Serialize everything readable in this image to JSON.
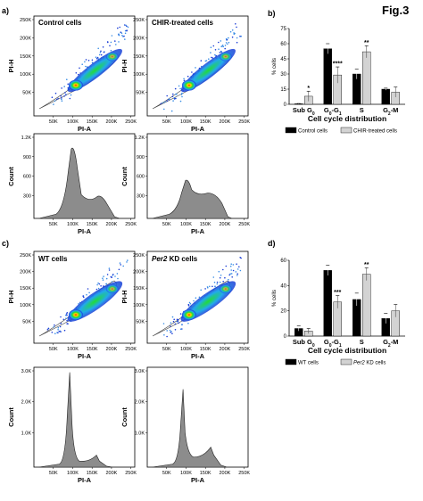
{
  "figure_title": "Fig.3",
  "panels": {
    "a": {
      "letter": "a)",
      "left_title": "Control cells",
      "right_title": "CHIR-treated cells"
    },
    "b": {
      "letter": "b)"
    },
    "c": {
      "letter": "c)",
      "left_title": "WT cells",
      "right_title": "Per2 KD cells"
    },
    "d": {
      "letter": "d)"
    }
  },
  "flow": {
    "scatter_ylabel": "PI-H",
    "xlabel": "PI-A",
    "hist_ylabel": "Count",
    "x_ticks": [
      "50K",
      "100K",
      "150K",
      "200K",
      "250K"
    ],
    "scatter_y_ticks": [
      "250K",
      "200K",
      "150K",
      "100K",
      "50K"
    ],
    "hist_y_ticks_a": [
      "1.2K",
      "900",
      "600",
      "300"
    ],
    "hist_y_ticks_c": [
      "3.0K",
      "2.0K",
      "1.0K"
    ]
  },
  "colors": {
    "black_bar": "#000000",
    "gray_bar": "#d3d3d3",
    "hist_fill": "#8c8c8c"
  },
  "chart_data": [
    {
      "type": "bar",
      "panel": "b",
      "title": "",
      "xlabel": "Cell cycle distribution",
      "ylabel": "% cells",
      "ylim": [
        0,
        75
      ],
      "y_ticks": [
        0,
        15,
        30,
        45,
        60,
        75
      ],
      "categories": [
        "Sub G0",
        "G0-G1",
        "S",
        "G2-M"
      ],
      "category_labels": [
        {
          "base": "Sub G",
          "sub": "0"
        },
        {
          "base": "G",
          "sub": "0",
          "mid": "-G",
          "sub2": "1"
        },
        {
          "base": "S"
        },
        {
          "base": "G",
          "sub": "2",
          "mid": "-M"
        }
      ],
      "series": [
        {
          "name": "Control cells",
          "color": "#000000",
          "values": [
            0.5,
            55,
            30,
            15
          ],
          "errors": [
            0.3,
            5,
            5,
            1
          ]
        },
        {
          "name": "CHIR-treated cells",
          "color": "#d3d3d3",
          "values": [
            8,
            29,
            52,
            12
          ],
          "errors": [
            5,
            8,
            6,
            5
          ]
        }
      ],
      "significance": [
        "*",
        "****",
        "**",
        ""
      ],
      "legend": "bottom"
    },
    {
      "type": "bar",
      "panel": "d",
      "title": "",
      "xlabel": "Cell cycle distribution",
      "ylabel": "% cells",
      "ylim": [
        0,
        60
      ],
      "y_ticks": [
        0,
        20,
        40,
        60
      ],
      "categories": [
        "Sub G0",
        "G0-G1",
        "S",
        "G2-M"
      ],
      "category_labels": [
        {
          "base": "Sub G",
          "sub": "0"
        },
        {
          "base": "G",
          "sub": "0",
          "mid": "-G",
          "sub2": "1"
        },
        {
          "base": "S"
        },
        {
          "base": "G",
          "sub": "2",
          "mid": "-M"
        }
      ],
      "series": [
        {
          "name": "WT cells",
          "color": "#000000",
          "values": [
            6,
            52,
            29,
            14
          ],
          "errors": [
            2,
            4,
            5,
            4
          ]
        },
        {
          "name": "Per2 KD cells",
          "color": "#d3d3d3",
          "values": [
            4,
            27,
            49,
            20
          ],
          "errors": [
            2,
            5,
            5,
            5
          ]
        }
      ],
      "significance": [
        "",
        "***",
        "**",
        ""
      ],
      "legend": "bottom"
    }
  ]
}
